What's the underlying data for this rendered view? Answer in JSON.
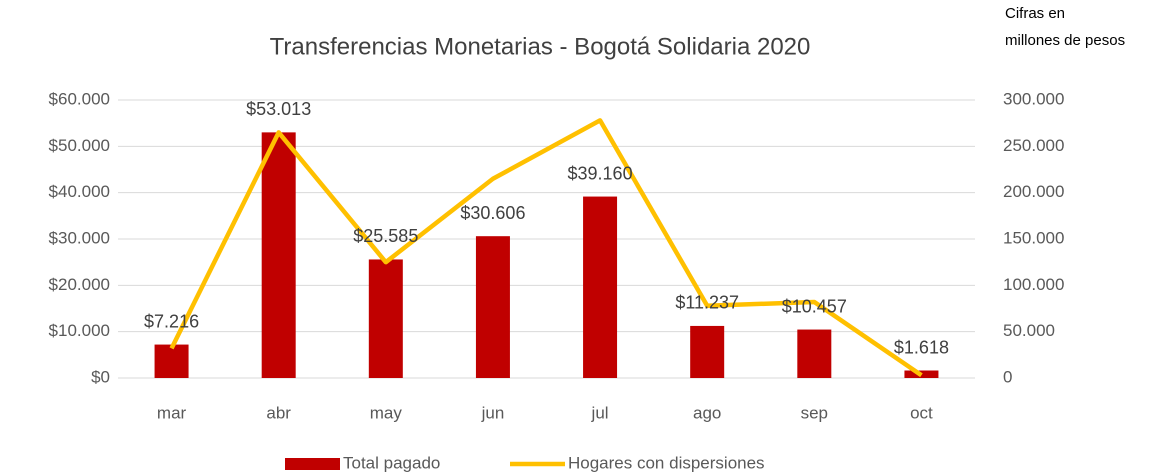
{
  "chart_data": {
    "type": "combo",
    "title": "Transferencias Monetarias - Bogotá Solidaria 2020",
    "annotation": [
      "Cifras en",
      "millones de pesos"
    ],
    "categories": [
      "mar",
      "abr",
      "may",
      "jun",
      "jul",
      "ago",
      "sep",
      "oct"
    ],
    "series": [
      {
        "name": "Total pagado",
        "type": "bar",
        "color": "#c00000",
        "axis": "y",
        "values": [
          7216,
          53013,
          25585,
          30606,
          39160,
          11237,
          10457,
          1618
        ],
        "value_labels": [
          "$7.216",
          "$53.013",
          "$25.585",
          "$30.606",
          "$39.160",
          "$11.237",
          "$10.457",
          "$1.618"
        ]
      },
      {
        "name": "Hogares con dispersiones",
        "type": "line",
        "color": "#ffc000",
        "axis": "y2",
        "values": [
          32000,
          265000,
          125000,
          215000,
          278000,
          78000,
          82000,
          3000
        ]
      }
    ],
    "ylim": [
      0,
      60000
    ],
    "yticks": [
      {
        "value": 0,
        "label": "$0"
      },
      {
        "value": 10000,
        "label": "$10.000"
      },
      {
        "value": 20000,
        "label": "$20.000"
      },
      {
        "value": 30000,
        "label": "$30.000"
      },
      {
        "value": 40000,
        "label": "$40.000"
      },
      {
        "value": 50000,
        "label": "$50.000"
      },
      {
        "value": 60000,
        "label": "$60.000"
      }
    ],
    "y2lim": [
      0,
      300000
    ],
    "y2ticks": [
      0,
      {
        "value": 50000,
        "label": "50.000"
      },
      {
        "value": 100000,
        "label": "100.000"
      },
      {
        "value": 150000,
        "label": "150.000"
      },
      {
        "value": 200000,
        "label": "200.000"
      },
      {
        "value": 250000,
        "label": "250.000"
      },
      {
        "value": 300000,
        "label": "300.000"
      }
    ],
    "grid": true,
    "legend": "bottom"
  }
}
